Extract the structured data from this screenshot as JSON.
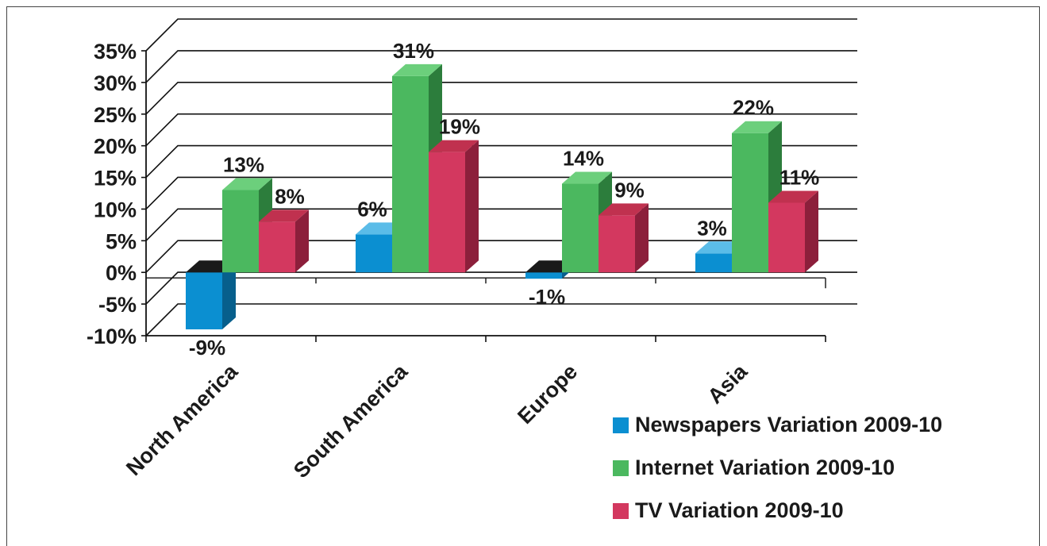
{
  "chart_data": {
    "type": "bar",
    "style": "3d-clustered-column",
    "title": "",
    "xlabel": "",
    "ylabel": "",
    "ylim": [
      -10,
      35
    ],
    "y_ticks": [
      "35%",
      "30%",
      "25%",
      "20%",
      "15%",
      "10%",
      "5%",
      "0%",
      "-5%",
      "-10%"
    ],
    "y_tick_values": [
      35,
      30,
      25,
      20,
      15,
      10,
      5,
      0,
      -5,
      -10
    ],
    "grid": true,
    "legend_position": "bottom-right",
    "categories": [
      "North America",
      "South America",
      "Europe",
      "Asia"
    ],
    "series": [
      {
        "name": "Newspapers Variation 2009-10",
        "color": "#0b8fd1",
        "side_color": "#075f8c",
        "top_color": "#5bbce8",
        "values": [
          -9,
          6,
          -1,
          3
        ],
        "labels": [
          "-9%",
          "6%",
          "-1%",
          "3%"
        ]
      },
      {
        "name": "Internet Variation 2009-10",
        "color": "#4bb85f",
        "side_color": "#2c7d3c",
        "top_color": "#6ccf7c",
        "values": [
          13,
          31,
          14,
          22
        ],
        "labels": [
          "13%",
          "31%",
          "14%",
          "22%"
        ]
      },
      {
        "name": "TV Variation 2009-10",
        "color": "#d3385f",
        "side_color": "#8c1f3b",
        "top_color": "#c0314f",
        "values": [
          8,
          19,
          9,
          11
        ],
        "labels": [
          "8%",
          "19%",
          "9%",
          "11%"
        ]
      }
    ]
  }
}
